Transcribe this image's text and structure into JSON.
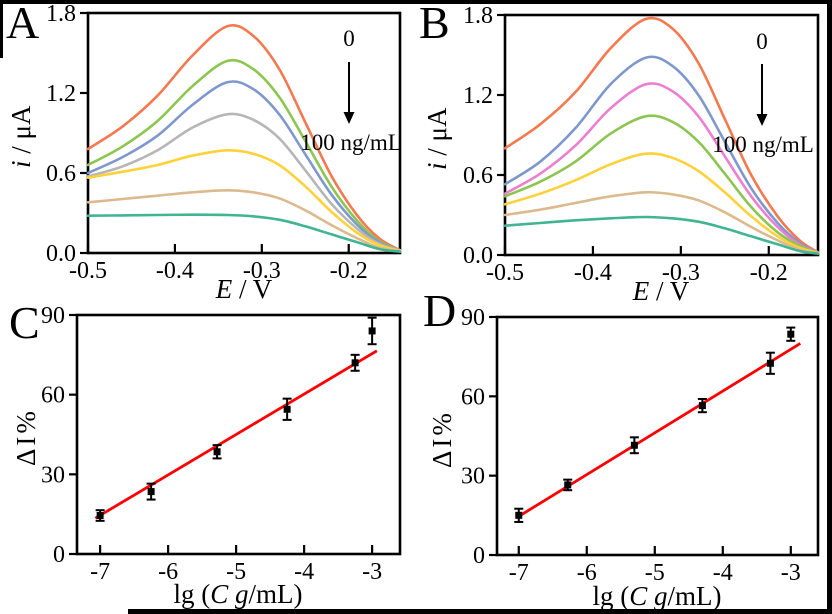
{
  "figure": {
    "background": "#ffffff",
    "frame_color": "#000000",
    "text_color": "#000000"
  },
  "panels": [
    {
      "letter": "A",
      "xlabel_pre": "",
      "xlabel_italic": "E",
      "xlabel_post": " / V",
      "ylabel_pre": "",
      "ylabel_italic": "i",
      "ylabel_post": " / μA"
    },
    {
      "letter": "B",
      "xlabel_pre": "",
      "xlabel_italic": "E",
      "xlabel_post": " / V",
      "ylabel_pre": "",
      "ylabel_italic": "i",
      "ylabel_post": " / μA"
    },
    {
      "letter": "C",
      "xlabel_pre": "lg (",
      "xlabel_italic": "C g",
      "xlabel_post": "/mL)",
      "ylabel_pre": "ΔI%",
      "ylabel_italic": "",
      "ylabel_post": ""
    },
    {
      "letter": "D",
      "xlabel_pre": "lg (",
      "xlabel_italic": "C g",
      "xlabel_post": "/mL)",
      "ylabel_pre": "ΔI%",
      "ylabel_italic": "",
      "ylabel_post": ""
    }
  ],
  "chart_data": [
    {
      "id": "a",
      "type": "line",
      "xlabel": "E / V",
      "ylabel": "i / μA",
      "xlim": [
        -0.5,
        -0.141
      ],
      "ylim": [
        0,
        1.8
      ],
      "x_ticks": [
        -0.5,
        -0.4,
        -0.3,
        -0.2
      ],
      "x_tick_labels": [
        "-0.5",
        "-0.4",
        "-0.3",
        "-0.2"
      ],
      "y_ticks": [
        0,
        0.6,
        1.2,
        1.8
      ],
      "y_tick_labels": [
        "0.0",
        "0.6",
        "1.2",
        "1.8"
      ],
      "annotation": {
        "start_label": "0",
        "end_label": "100 ng/mL",
        "arrow": "down"
      },
      "x": [
        -0.5,
        -0.46,
        -0.42,
        -0.38,
        -0.34,
        -0.31,
        -0.28,
        -0.25,
        -0.22,
        -0.19,
        -0.165,
        -0.141
      ],
      "series": [
        {
          "name": "curve-1-top",
          "color": "#f4794f",
          "y": [
            0.78,
            0.95,
            1.18,
            1.48,
            1.7,
            1.63,
            1.38,
            0.98,
            0.58,
            0.28,
            0.11,
            0.02
          ]
        },
        {
          "name": "curve-2",
          "color": "#8cc650",
          "y": [
            0.66,
            0.8,
            0.99,
            1.25,
            1.44,
            1.38,
            1.17,
            0.84,
            0.5,
            0.24,
            0.09,
            0.02
          ]
        },
        {
          "name": "curve-3",
          "color": "#7e97cd",
          "y": [
            0.6,
            0.72,
            0.88,
            1.11,
            1.28,
            1.23,
            1.04,
            0.74,
            0.44,
            0.21,
            0.08,
            0.02
          ]
        },
        {
          "name": "curve-4",
          "color": "#b6b6b6",
          "y": [
            0.575,
            0.65,
            0.77,
            0.94,
            1.04,
            1.0,
            0.86,
            0.62,
            0.37,
            0.18,
            0.07,
            0.02
          ]
        },
        {
          "name": "curve-5",
          "color": "#fdd13a",
          "y": [
            0.565,
            0.61,
            0.66,
            0.73,
            0.77,
            0.745,
            0.66,
            0.5,
            0.31,
            0.15,
            0.06,
            0.015
          ]
        },
        {
          "name": "curve-6",
          "color": "#dcba8e",
          "y": [
            0.38,
            0.405,
            0.43,
            0.455,
            0.47,
            0.455,
            0.41,
            0.32,
            0.21,
            0.11,
            0.04,
            0.012
          ]
        },
        {
          "name": "curve-7-bottom",
          "color": "#41b493",
          "y": [
            0.28,
            0.282,
            0.285,
            0.287,
            0.285,
            0.275,
            0.25,
            0.2,
            0.14,
            0.08,
            0.03,
            0.01
          ]
        }
      ]
    },
    {
      "id": "b",
      "type": "line",
      "xlabel": "E / V",
      "ylabel": "i / μA",
      "xlim": [
        -0.5,
        -0.144
      ],
      "ylim": [
        0,
        1.8
      ],
      "x_ticks": [
        -0.5,
        -0.4,
        -0.3,
        -0.2
      ],
      "x_tick_labels": [
        "-0.5",
        "-0.4",
        "-0.3",
        "-0.2"
      ],
      "y_ticks": [
        0,
        0.6,
        1.2,
        1.8
      ],
      "y_tick_labels": [
        "0.0",
        "0.6",
        "1.2",
        "1.8"
      ],
      "annotation": {
        "start_label": "0",
        "end_label": "100 ng/mL",
        "arrow": "down"
      },
      "x": [
        -0.5,
        -0.46,
        -0.42,
        -0.38,
        -0.34,
        -0.31,
        -0.28,
        -0.25,
        -0.22,
        -0.19,
        -0.165,
        -0.144
      ],
      "series": [
        {
          "name": "curve-1-top",
          "color": "#f4794f",
          "y": [
            0.8,
            0.98,
            1.22,
            1.55,
            1.77,
            1.7,
            1.44,
            1.02,
            0.6,
            0.29,
            0.11,
            0.02
          ]
        },
        {
          "name": "curve-2",
          "color": "#7e97cd",
          "y": [
            0.53,
            0.7,
            0.95,
            1.28,
            1.48,
            1.42,
            1.2,
            0.85,
            0.5,
            0.24,
            0.09,
            0.02
          ]
        },
        {
          "name": "curve-3",
          "color": "#ec7fd0",
          "y": [
            0.46,
            0.61,
            0.82,
            1.1,
            1.28,
            1.23,
            1.04,
            0.74,
            0.44,
            0.21,
            0.08,
            0.02
          ]
        },
        {
          "name": "curve-4",
          "color": "#8cc650",
          "y": [
            0.44,
            0.55,
            0.7,
            0.91,
            1.04,
            1.0,
            0.85,
            0.61,
            0.36,
            0.17,
            0.07,
            0.015
          ]
        },
        {
          "name": "curve-5",
          "color": "#fdd13a",
          "y": [
            0.38,
            0.46,
            0.56,
            0.68,
            0.76,
            0.73,
            0.63,
            0.47,
            0.29,
            0.14,
            0.055,
            0.015
          ]
        },
        {
          "name": "curve-6",
          "color": "#dcba8e",
          "y": [
            0.3,
            0.34,
            0.39,
            0.44,
            0.47,
            0.455,
            0.41,
            0.32,
            0.21,
            0.11,
            0.04,
            0.012
          ]
        },
        {
          "name": "curve-7-bottom",
          "color": "#41b493",
          "y": [
            0.22,
            0.24,
            0.26,
            0.275,
            0.285,
            0.275,
            0.25,
            0.2,
            0.14,
            0.08,
            0.03,
            0.01
          ]
        }
      ]
    },
    {
      "id": "c",
      "type": "scatter",
      "xlabel": "lg (C g/mL)",
      "ylabel": "ΔI%",
      "xlim": [
        -7.34,
        -2.59
      ],
      "ylim": [
        0,
        90
      ],
      "x_ticks": [
        -7,
        -6,
        -5,
        -4,
        -3
      ],
      "x_tick_labels": [
        "-7",
        "-6",
        "-5",
        "-4",
        "-3"
      ],
      "y_ticks": [
        0,
        30,
        60,
        90
      ],
      "y_tick_labels": [
        "0",
        "30",
        "60",
        "90"
      ],
      "points": {
        "x": [
          -7.0,
          -6.25,
          -5.28,
          -4.25,
          -3.25,
          -3.0
        ],
        "y": [
          14.5,
          23.5,
          38.5,
          54.5,
          72.0,
          84.0
        ],
        "err": [
          2.0,
          3.0,
          2.5,
          4.0,
          3.0,
          5.0
        ],
        "marker_color": "#000000"
      },
      "fit_line": {
        "x1": -7.07,
        "y1": 13.5,
        "x2": -2.93,
        "y2": 76.5,
        "color": "#fe0000"
      }
    },
    {
      "id": "d",
      "type": "scatter",
      "xlabel": "lg (C g/mL)",
      "ylabel": "ΔI%",
      "xlim": [
        -7.32,
        -2.6
      ],
      "ylim": [
        0,
        90
      ],
      "x_ticks": [
        -7,
        -6,
        -5,
        -4,
        -3
      ],
      "x_tick_labels": [
        "-7",
        "-6",
        "-5",
        "-4",
        "-3"
      ],
      "y_ticks": [
        0,
        30,
        60,
        90
      ],
      "y_tick_labels": [
        "0",
        "30",
        "60",
        "90"
      ],
      "points": {
        "x": [
          -7.0,
          -6.28,
          -5.3,
          -4.3,
          -3.3,
          -3.0
        ],
        "y": [
          15.0,
          26.5,
          41.5,
          56.5,
          72.5,
          83.5
        ],
        "err": [
          2.5,
          2.0,
          3.0,
          2.5,
          4.0,
          2.5
        ],
        "marker_color": "#000000"
      },
      "fit_line": {
        "x1": -7.02,
        "y1": 14.3,
        "x2": -2.86,
        "y2": 80.0,
        "color": "#fe0000"
      }
    }
  ]
}
